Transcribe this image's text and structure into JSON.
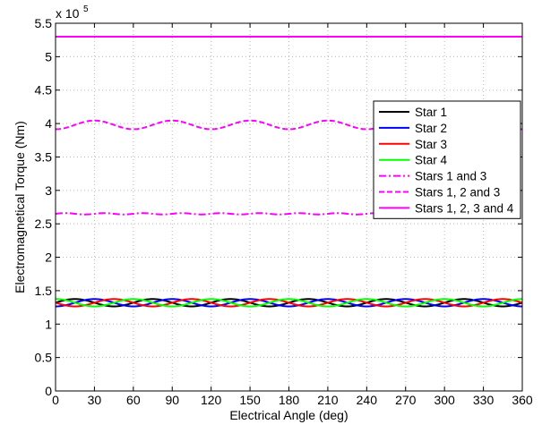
{
  "chart_data": {
    "type": "line",
    "xlabel": "Electrical Angle (deg)",
    "ylabel": "Electromagnetical Torque (Nm)",
    "xlim": [
      0,
      360
    ],
    "ylim": [
      0,
      5.5
    ],
    "xticks": [
      0,
      30,
      60,
      90,
      120,
      150,
      180,
      210,
      240,
      270,
      300,
      330,
      360
    ],
    "yticks": [
      0,
      0.5,
      1,
      1.5,
      2,
      2.5,
      3,
      3.5,
      4,
      4.5,
      5,
      5.5
    ],
    "ytick_labels": [
      "0",
      "0.5",
      "1",
      "1.5",
      "2",
      "2.5",
      "3",
      "3.5",
      "4",
      "4.5",
      "5",
      "5.5"
    ],
    "y_exponent_base": "x 10",
    "y_exponent_power": "5",
    "grid": true,
    "legend_position": "right",
    "series": [
      {
        "name": "Star 1",
        "color": "#000000",
        "dash": "solid",
        "mean": 1.32,
        "amplitude": 0.055,
        "period_deg": 60,
        "phase_deg": 0
      },
      {
        "name": "Star 2",
        "color": "#0000ff",
        "dash": "solid",
        "mean": 1.32,
        "amplitude": 0.055,
        "period_deg": 60,
        "phase_deg": 15
      },
      {
        "name": "Star 3",
        "color": "#ff0000",
        "dash": "solid",
        "mean": 1.32,
        "amplitude": 0.055,
        "period_deg": 60,
        "phase_deg": 30
      },
      {
        "name": "Star 4",
        "color": "#00ff00",
        "dash": "solid",
        "mean": 1.32,
        "amplitude": 0.055,
        "period_deg": 60,
        "phase_deg": 45
      },
      {
        "name": "Stars 1 and 3",
        "color": "#ff00ff",
        "dash": "dashdot",
        "mean": 2.65,
        "amplitude": 0.01,
        "period_deg": 30,
        "phase_deg": 0
      },
      {
        "name": "Stars 1, 2 and 3",
        "color": "#ff00ff",
        "dash": "dashed",
        "mean": 3.98,
        "amplitude": 0.065,
        "period_deg": 60,
        "phase_deg": 15
      },
      {
        "name": "Stars 1, 2, 3 and 4",
        "color": "#ff00ff",
        "dash": "solid",
        "mean": 5.3,
        "amplitude": 0,
        "period_deg": 60,
        "phase_deg": 0
      }
    ]
  }
}
